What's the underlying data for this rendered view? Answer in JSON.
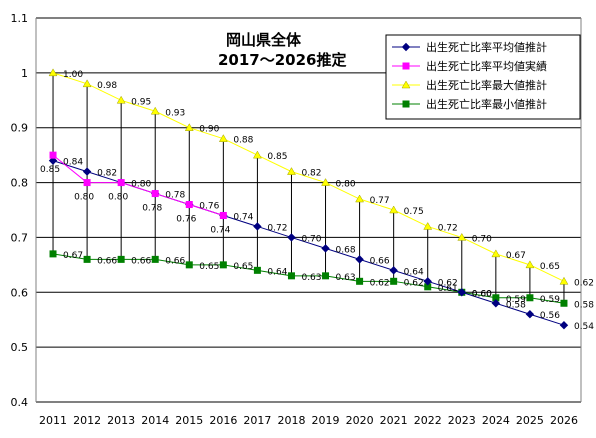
{
  "chart_data": {
    "type": "line",
    "title": "岡山県全体",
    "subtitle": "2017～2026推定",
    "x": [
      2011,
      2012,
      2013,
      2014,
      2015,
      2016,
      2017,
      2018,
      2019,
      2020,
      2021,
      2022,
      2023,
      2024,
      2025,
      2026
    ],
    "ylim": [
      0.4,
      1.1
    ],
    "yticks": [
      "0.4",
      "0.5",
      "0.6",
      "0.7",
      "0.8",
      "0.9",
      "1",
      "1.1"
    ],
    "grid": true,
    "legend_position": "top-right",
    "series": [
      {
        "name": "出生死亡比率平均値推計",
        "color": "#000080",
        "marker": "diamond",
        "values": [
          0.84,
          0.82,
          0.8,
          0.78,
          0.76,
          0.74,
          0.72,
          0.7,
          0.68,
          0.66,
          0.64,
          0.62,
          0.6,
          0.58,
          0.56,
          0.54
        ],
        "labels": [
          "0.84",
          "0.82",
          "0.80",
          "0.78",
          "0.76",
          "0.74",
          "0.72",
          "0.70",
          "0.68",
          "0.66",
          "0.64",
          "0.62",
          "0.60",
          "0.58",
          "0.56",
          "0.54"
        ]
      },
      {
        "name": "出生死亡比率平均値実績",
        "color": "#FF00FF",
        "marker": "square",
        "values": [
          0.85,
          0.8,
          0.8,
          0.78,
          0.76,
          0.74,
          null,
          null,
          null,
          null,
          null,
          null,
          null,
          null,
          null,
          null
        ],
        "labels": [
          "0.85",
          "0.80",
          "0.80",
          "0.78",
          "0.76",
          "0.74",
          null,
          null,
          null,
          null,
          null,
          null,
          null,
          null,
          null,
          null
        ]
      },
      {
        "name": "出生死亡比率最大値推計",
        "color": "#FFFF00",
        "marker": "triangle",
        "values": [
          1.0,
          0.98,
          0.95,
          0.93,
          0.9,
          0.88,
          0.85,
          0.82,
          0.8,
          0.77,
          0.75,
          0.72,
          0.7,
          0.67,
          0.65,
          0.62
        ],
        "labels": [
          "1.00",
          "0.98",
          "0.95",
          "0.93",
          "0.90",
          "0.88",
          "0.85",
          "0.82",
          "0.80",
          "0.77",
          "0.75",
          "0.72",
          "0.70",
          "0.67",
          "0.65",
          "0.62"
        ]
      },
      {
        "name": "出生死亡比率最小値推計",
        "color": "#008000",
        "marker": "square",
        "values": [
          0.67,
          0.66,
          0.66,
          0.66,
          0.65,
          0.65,
          0.64,
          0.63,
          0.63,
          0.62,
          0.62,
          0.61,
          0.6,
          0.59,
          0.59,
          0.58
        ],
        "labels": [
          "0.67",
          "0.66",
          "0.66",
          "0.66",
          "0.65",
          "0.65",
          "0.64",
          "0.63",
          "0.63",
          "0.62",
          "0.62",
          "0.61",
          "0.60",
          "0.59",
          "0.59",
          "0.58"
        ]
      }
    ]
  }
}
